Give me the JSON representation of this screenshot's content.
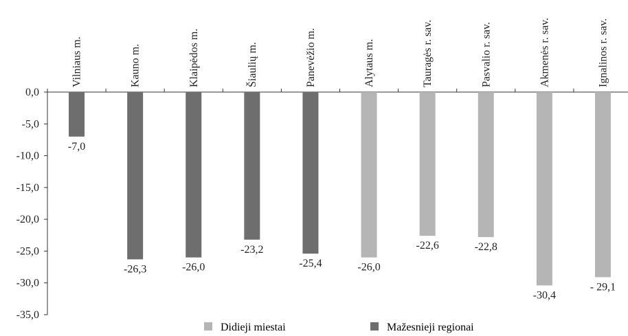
{
  "chart_data": {
    "type": "bar",
    "categories": [
      "Vilniaus m.",
      "Kauno m.",
      "Klaipėdos m.",
      "Šiaulių m.",
      "Panevėžio m.",
      "Alytaus m.",
      "Tauragės r. sav.",
      "Pasvalio r. sav.",
      "Akmenės r. sav.",
      "Ignalinos r. sav."
    ],
    "values": [
      -7.0,
      -26.3,
      -26.0,
      -23.2,
      -25.4,
      -26.0,
      -22.6,
      -22.8,
      -30.4,
      -29.1
    ],
    "value_labels": [
      "-7,0",
      "-26,3",
      "-26,0",
      "-23,2",
      "-25,4",
      "-26,0",
      "-22,6",
      "-22,8",
      "-30,4",
      "- 29,1"
    ],
    "bar_group": [
      0,
      0,
      0,
      0,
      0,
      1,
      1,
      1,
      1,
      1
    ],
    "ylim": [
      -35,
      0
    ],
    "yticks": [
      0,
      -5,
      -10,
      -15,
      -20,
      -25,
      -30,
      -35
    ],
    "ytick_labels": [
      "0,0",
      "-5,0",
      "-10,0",
      "-15,0",
      "-20,0",
      "-25,0",
      "-30,0",
      "-35,0"
    ],
    "legend": {
      "placement": "bottom",
      "entries": [
        {
          "label": "Didieji miestai",
          "color": "#b5b5b5"
        },
        {
          "label": "Mažesnieji regionai",
          "color": "#6e6e6e"
        }
      ]
    },
    "colors": [
      "#6e6e6e",
      "#b5b5b5"
    ],
    "grid": false,
    "title": "",
    "xlabel": "",
    "ylabel": ""
  }
}
